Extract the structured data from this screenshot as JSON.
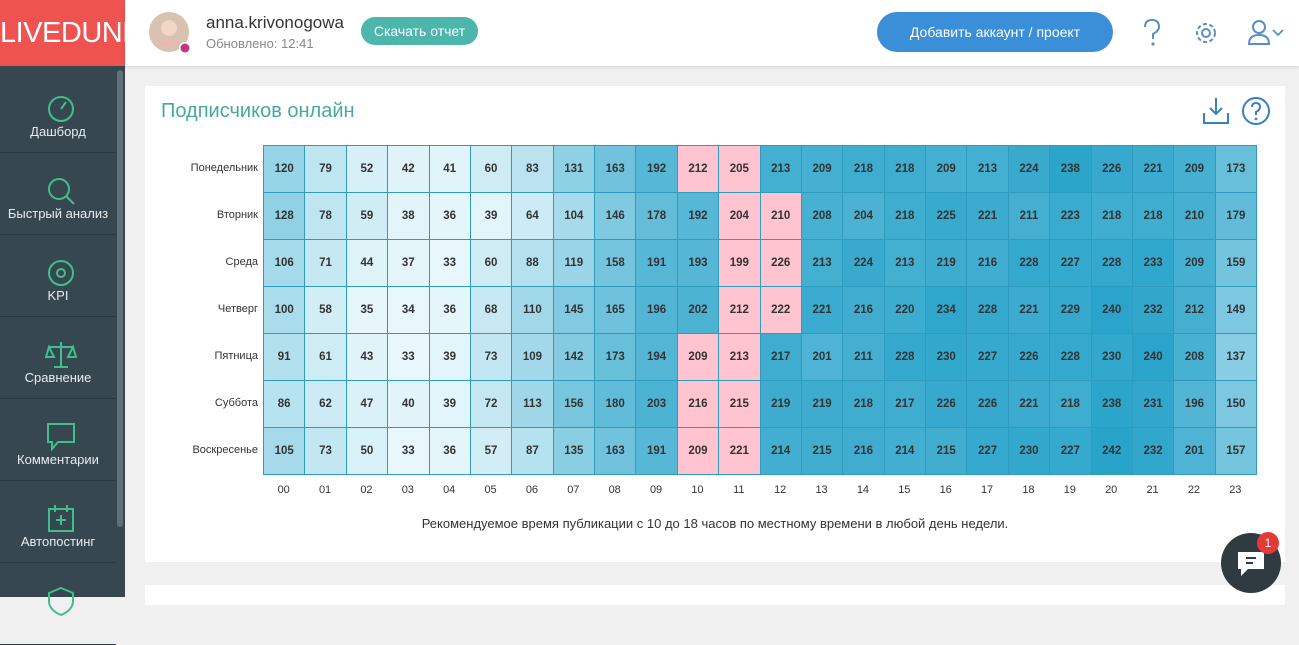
{
  "sidebar": {
    "logo": "LIVEDUNE",
    "nav": [
      "Дашборд",
      "Быстрый анализ",
      "KPI",
      "Сравнение",
      "Комментарии",
      "Автопостинг"
    ]
  },
  "header": {
    "username": "anna.krivonogowa",
    "updated": "Обновлено: 12:41",
    "download_button": "Скачать отчет",
    "add_button": "Добавить аккаунт / проект"
  },
  "card": {
    "title": "Подписчиков онлайн",
    "rows": [
      "Понедельник",
      "Вторник",
      "Среда",
      "Четверг",
      "Пятница",
      "Суббота",
      "Воскресенье"
    ],
    "hours": [
      "00",
      "01",
      "02",
      "03",
      "04",
      "05",
      "06",
      "07",
      "08",
      "09",
      "10",
      "11",
      "12",
      "13",
      "14",
      "15",
      "16",
      "17",
      "18",
      "19",
      "20",
      "21",
      "22",
      "23"
    ],
    "values": [
      [
        120,
        79,
        52,
        42,
        41,
        60,
        83,
        131,
        163,
        192,
        212,
        205,
        213,
        209,
        218,
        218,
        209,
        213,
        224,
        238,
        226,
        221,
        209,
        173
      ],
      [
        128,
        78,
        59,
        38,
        36,
        39,
        64,
        104,
        146,
        178,
        192,
        204,
        210,
        208,
        204,
        218,
        225,
        221,
        211,
        223,
        218,
        218,
        210,
        179
      ],
      [
        106,
        71,
        44,
        37,
        33,
        60,
        88,
        119,
        158,
        191,
        193,
        199,
        226,
        213,
        224,
        213,
        219,
        216,
        228,
        227,
        228,
        233,
        209,
        159
      ],
      [
        100,
        58,
        35,
        34,
        36,
        68,
        110,
        145,
        165,
        196,
        202,
        212,
        222,
        221,
        216,
        220,
        234,
        228,
        221,
        229,
        240,
        232,
        212,
        149
      ],
      [
        91,
        61,
        43,
        33,
        39,
        73,
        109,
        142,
        173,
        194,
        209,
        213,
        217,
        201,
        211,
        228,
        230,
        227,
        226,
        228,
        230,
        240,
        208,
        137
      ],
      [
        86,
        62,
        47,
        40,
        39,
        72,
        113,
        156,
        180,
        203,
        216,
        215,
        219,
        219,
        218,
        217,
        226,
        226,
        221,
        218,
        238,
        231,
        196,
        150
      ],
      [
        105,
        73,
        50,
        33,
        36,
        57,
        87,
        135,
        163,
        191,
        209,
        221,
        214,
        215,
        216,
        214,
        215,
        227,
        230,
        227,
        242,
        232,
        201,
        157
      ]
    ],
    "highlighted": [
      [
        0,
        10
      ],
      [
        0,
        11
      ],
      [
        1,
        11
      ],
      [
        1,
        12
      ],
      [
        2,
        11
      ],
      [
        2,
        12
      ],
      [
        3,
        11
      ],
      [
        3,
        12
      ],
      [
        4,
        10
      ],
      [
        4,
        11
      ],
      [
        5,
        10
      ],
      [
        5,
        11
      ],
      [
        6,
        10
      ],
      [
        6,
        11
      ]
    ],
    "note": "Рекомендуемое время публикации с 10 до 18 часов по местному времени в любой день недели."
  },
  "chat": {
    "badge": "1"
  }
}
